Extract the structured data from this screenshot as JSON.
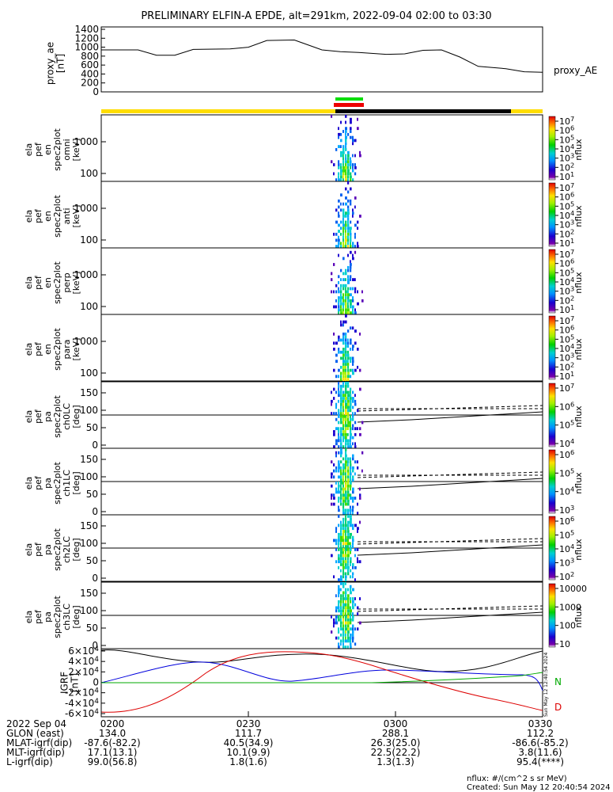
{
  "title": "PRELIMINARY ELFIN-A EPDE, alt=291km, 2022-09-04 02:00 to 03:30",
  "colors": {
    "yellow_bar": "#ffdd00",
    "black_bar": "#000000",
    "red_marker": "#ee0000",
    "green_marker": "#00dd00",
    "line_blue": "#0000dd",
    "line_red": "#dd0000",
    "line_green": "#00aa00",
    "line_black": "#000000"
  },
  "chart_data": [
    {
      "type": "line",
      "panel": "proxy_ae",
      "ylabel": [
        "proxy_ae",
        "[nT]"
      ],
      "legend": "proxy_AE",
      "yticks": [
        "1400",
        "1200",
        "1000",
        "800",
        "600",
        "400",
        "200",
        "0"
      ],
      "ytick_values": [
        1400,
        1200,
        1000,
        800,
        600,
        400,
        200,
        0
      ],
      "ylim": [
        0,
        1400
      ],
      "x": [
        0,
        8,
        12,
        16,
        20,
        28,
        32,
        36,
        42,
        48,
        52,
        56,
        62,
        66,
        70,
        74,
        78,
        82,
        88,
        92,
        96
      ],
      "y": [
        940,
        940,
        820,
        820,
        950,
        960,
        1000,
        1150,
        1160,
        940,
        900,
        880,
        840,
        850,
        930,
        940,
        780,
        570,
        520,
        450,
        440
      ]
    },
    {
      "type": "heatmap",
      "panel": "spec_omni",
      "ylabel": [
        "ela",
        "pef",
        "en",
        "spec2plot",
        "omni",
        "[keV]"
      ],
      "yticks": [
        "1000",
        "100"
      ],
      "colorbar": {
        "label": "nflux",
        "ticks": [
          "10^7",
          "10^6",
          "10^5",
          "10^4",
          "10^3",
          "10^2",
          "10^1"
        ],
        "exponents": [
          7,
          6,
          5,
          4,
          3,
          2,
          1
        ]
      }
    },
    {
      "type": "heatmap",
      "panel": "spec_anti",
      "ylabel": [
        "ela",
        "pef",
        "en",
        "spec2plot",
        "anti",
        "[keV]"
      ],
      "yticks": [
        "1000",
        "100"
      ],
      "colorbar": {
        "label": "nflux",
        "ticks": [
          "10^7",
          "10^6",
          "10^5",
          "10^4",
          "10^3",
          "10^2",
          "10^1"
        ],
        "exponents": [
          7,
          6,
          5,
          4,
          3,
          2,
          1
        ]
      }
    },
    {
      "type": "heatmap",
      "panel": "spec_perp",
      "ylabel": [
        "ela",
        "pef",
        "en",
        "spec2plot",
        "perp",
        "[keV]"
      ],
      "yticks": [
        "1000",
        "100"
      ],
      "colorbar": {
        "label": "nflux",
        "ticks": [
          "10^7",
          "10^6",
          "10^5",
          "10^4",
          "10^3",
          "10^2",
          "10^1"
        ],
        "exponents": [
          7,
          6,
          5,
          4,
          3,
          2,
          1
        ]
      }
    },
    {
      "type": "heatmap",
      "panel": "spec_para",
      "ylabel": [
        "ela",
        "pef",
        "en",
        "spec2plot",
        "para",
        "[keV]"
      ],
      "yticks": [
        "1000",
        "100"
      ],
      "colorbar": {
        "label": "nflux",
        "ticks": [
          "10^7",
          "10^6",
          "10^5",
          "10^4",
          "10^3",
          "10^2",
          "10^1"
        ],
        "exponents": [
          7,
          6,
          5,
          4,
          3,
          2,
          1
        ]
      }
    },
    {
      "type": "heatmap",
      "panel": "pa_ch0",
      "ylabel": [
        "ela",
        "pef",
        "pa",
        "spec2plot",
        "ch0LC",
        "[deg]"
      ],
      "yticks": [
        "150",
        "100",
        "50",
        "0"
      ],
      "colorbar": {
        "label": "nflux",
        "ticks": [
          "10^7",
          "10^6",
          "10^5",
          "10^4"
        ],
        "exponents": [
          7,
          6,
          5,
          4
        ]
      }
    },
    {
      "type": "heatmap",
      "panel": "pa_ch1",
      "ylabel": [
        "ela",
        "pef",
        "pa",
        "spec2plot",
        "ch1LC",
        "[deg]"
      ],
      "yticks": [
        "150",
        "100",
        "50",
        "0"
      ],
      "colorbar": {
        "label": "nflux",
        "ticks": [
          "10^6",
          "10^5",
          "10^4",
          "10^3"
        ],
        "exponents": [
          6,
          5,
          4,
          3
        ]
      }
    },
    {
      "type": "heatmap",
      "panel": "pa_ch2",
      "ylabel": [
        "ela",
        "pef",
        "pa",
        "spec2plot",
        "ch2LC",
        "[deg]"
      ],
      "yticks": [
        "150",
        "100",
        "50",
        "0"
      ],
      "colorbar": {
        "label": "nflux",
        "ticks": [
          "10^6",
          "10^5",
          "10^4",
          "10^3",
          "10^2"
        ],
        "exponents": [
          6,
          5,
          4,
          3,
          2
        ]
      }
    },
    {
      "type": "heatmap",
      "panel": "pa_ch3",
      "ylabel": [
        "ela",
        "pef",
        "pa",
        "spec2plot",
        "ch3LC",
        "[deg]"
      ],
      "yticks": [
        "150",
        "100",
        "50",
        "0"
      ],
      "colorbar": {
        "label": "nflux",
        "ticks": [
          "10000",
          "1000",
          "100",
          "10"
        ]
      }
    },
    {
      "type": "line",
      "panel": "igrf",
      "ylabel": [
        "IGRF",
        "[nT]"
      ],
      "yticks": [
        "6×10^4",
        "4×10^4",
        "2×10^4",
        "0",
        "-2×10^4",
        "-4×10^4",
        "-6×10^4"
      ],
      "ytick_values": [
        60000,
        40000,
        20000,
        0,
        -20000,
        -40000,
        -60000
      ],
      "ylim": [
        -60000,
        60000
      ],
      "labels": {
        "N": "N",
        "D": "D"
      },
      "side_note": "Sun May 12 12:40:54 2024"
    }
  ],
  "x_axis": {
    "ticks": [
      "0200",
      "0230",
      "0300",
      "0330"
    ],
    "rows": [
      {
        "label": "2022 Sep 04",
        "values": [
          "0200",
          "0230",
          "0300",
          "0330"
        ]
      },
      {
        "label": "GLON (east)",
        "values": [
          "134.0",
          "111.7",
          "288.1",
          "112.2"
        ]
      },
      {
        "label": "MLAT-igrf(dip)",
        "values": [
          "-87.6(-82.2)",
          "40.5(34.9)",
          "26.3(25.0)",
          "-86.6(-85.2)"
        ]
      },
      {
        "label": "MLT-igrf(dip)",
        "values": [
          "17.1(13.1)",
          "10.1(9.9)",
          "22.5(22.2)",
          "3.8(11.6)"
        ]
      },
      {
        "label": "L-igrf(dip)",
        "values": [
          "99.0(56.8)",
          "1.8(1.6)",
          "1.3(1.3)",
          "95.4(****)"
        ]
      }
    ]
  },
  "footer": {
    "units": "nflux: #/(cm^2 s sr MeV)",
    "created": "Created: Sun May 12 20:40:54 2024"
  }
}
